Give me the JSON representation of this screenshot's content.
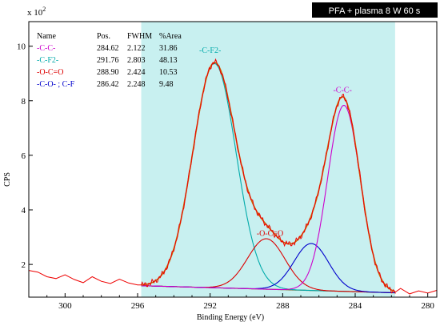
{
  "chart_data": {
    "type": "line",
    "title": "PFA + plasma 8 W 60 s",
    "xlabel": "Binding Energy (eV)",
    "ylabel": "CPS",
    "y_scale_label": "x 10^2",
    "y_scale_base": "x 10",
    "y_scale_exp": "2",
    "xlim": [
      302,
      279.5
    ],
    "ylim": [
      0.8,
      10.9
    ],
    "x_reversed": true,
    "x_ticks": [
      300,
      296,
      292,
      288,
      284,
      280
    ],
    "y_ticks": [
      2,
      4,
      6,
      8,
      10
    ],
    "fit_region": {
      "x": [
        295.8,
        281.8
      ],
      "color": "#c8f0f0"
    },
    "legend": {
      "headers": {
        "name": "Name",
        "pos": "Pos.",
        "fwhm": "FWHM",
        "area": "%Area"
      },
      "rows": [
        {
          "name": "-C-C-",
          "pos": "284.62",
          "fwhm": "2.122",
          "area": "31.86",
          "color": "#cc00cc"
        },
        {
          "name": "-C-F2-",
          "pos": "291.76",
          "fwhm": "2.803",
          "area": "48.13",
          "color": "#00aaaa"
        },
        {
          "name": "-O-C=O",
          "pos": "288.90",
          "fwhm": "2.424",
          "area": "10.53",
          "color": "#dd0000"
        },
        {
          "name": "-C-O- ; C-F",
          "pos": "286.42",
          "fwhm": "2.248",
          "area": "9.48",
          "color": "#0000cc"
        }
      ]
    },
    "peak_labels": [
      {
        "text": "-C-F2-",
        "x": 292.0,
        "y": 9.75,
        "color": "#00aaaa"
      },
      {
        "text": "-O-C=O",
        "x": 288.7,
        "y": 3.05,
        "color": "#dd0000"
      },
      {
        "text": "-C-C-",
        "x": 284.7,
        "y": 8.3,
        "color": "#cc00cc"
      }
    ],
    "background": {
      "x": [
        295.8,
        281.8
      ],
      "y": [
        1.22,
        0.96
      ],
      "color": "#806020"
    },
    "series": [
      {
        "name": "-C-F2-",
        "color": "#00aaaa",
        "center": 291.76,
        "fwhm": 2.803,
        "height": 8.22
      },
      {
        "name": "-O-C=O",
        "color": "#dd0000",
        "center": 288.9,
        "fwhm": 2.424,
        "height": 1.85
      },
      {
        "name": "-C-O- ; C-F",
        "color": "#0000cc",
        "center": 286.42,
        "fwhm": 2.248,
        "height": 1.72
      },
      {
        "name": "-C-C-",
        "color": "#cc00cc",
        "center": 284.62,
        "fwhm": 2.122,
        "height": 6.82
      }
    ],
    "envelope_color": "#cc6600",
    "raw_color": "#ee0000",
    "raw_left": {
      "x": [
        302.0,
        301.5,
        301.0,
        300.5,
        300.0,
        299.5,
        299.0,
        298.5,
        298.0,
        297.5,
        297.0,
        296.5,
        296.0
      ],
      "y": [
        1.78,
        1.72,
        1.55,
        1.48,
        1.62,
        1.45,
        1.33,
        1.55,
        1.38,
        1.3,
        1.46,
        1.32,
        1.25
      ]
    },
    "raw_right": {
      "x": [
        281.8,
        281.5,
        281.0,
        280.5,
        280.0,
        279.5
      ],
      "y": [
        0.98,
        1.12,
        0.92,
        1.03,
        0.95,
        1.05
      ]
    }
  }
}
